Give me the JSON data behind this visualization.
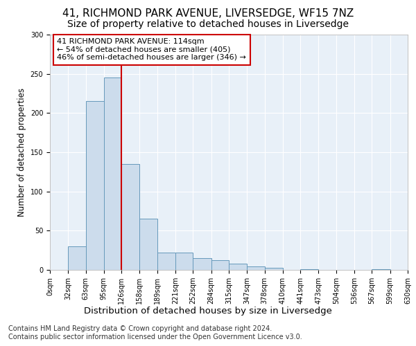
{
  "title1": "41, RICHMOND PARK AVENUE, LIVERSEDGE, WF15 7NZ",
  "title2": "Size of property relative to detached houses in Liversedge",
  "xlabel": "Distribution of detached houses by size in Liversedge",
  "ylabel": "Number of detached properties",
  "bin_edges": [
    0,
    32,
    63,
    95,
    126,
    158,
    189,
    221,
    252,
    284,
    315,
    347,
    378,
    410,
    441,
    473,
    504,
    536,
    567,
    599,
    630
  ],
  "bar_values": [
    0,
    30,
    215,
    245,
    135,
    65,
    22,
    22,
    15,
    12,
    8,
    4,
    3,
    0,
    1,
    0,
    0,
    0,
    1,
    0
  ],
  "bar_color": "#ccdcec",
  "bar_edge_color": "#6699bb",
  "vline_x": 126,
  "vline_color": "#cc0000",
  "annotation_text": "41 RICHMOND PARK AVENUE: 114sqm\n← 54% of detached houses are smaller (405)\n46% of semi-detached houses are larger (346) →",
  "annotation_box_color": "white",
  "annotation_box_edge": "#cc0000",
  "ylim": [
    0,
    300
  ],
  "yticks": [
    0,
    50,
    100,
    150,
    200,
    250,
    300
  ],
  "background_color": "#e8eef8",
  "plot_bg_color": "#e8f0f8",
  "footnote1": "Contains HM Land Registry data © Crown copyright and database right 2024.",
  "footnote2": "Contains public sector information licensed under the Open Government Licence v3.0.",
  "title1_fontsize": 11,
  "title2_fontsize": 10,
  "xlabel_fontsize": 9.5,
  "ylabel_fontsize": 8.5,
  "annot_fontsize": 8,
  "tick_fontsize": 7,
  "footnote_fontsize": 7
}
